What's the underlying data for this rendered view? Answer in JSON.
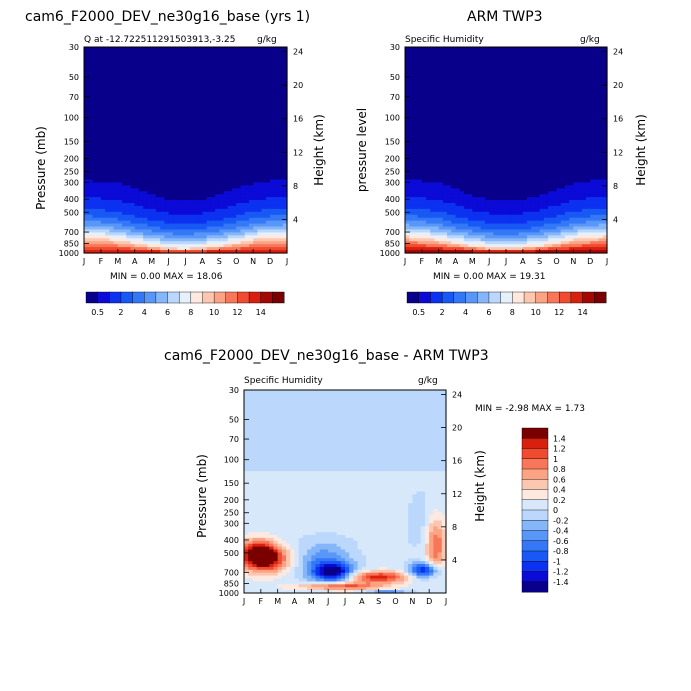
{
  "chart_data": [
    {
      "type": "heatmap",
      "title": "cam6_F2000_DEV_ne30g16_base (yrs 1)",
      "subtitle_left": "Q at -12.722511291503913,-3.25",
      "units": "g/kg",
      "ylabel": "Pressure (mb)",
      "ylabel_right": "Height (km)",
      "stats": "MIN =    0.00 MAX =   18.06",
      "surface": {
        "top_p": [
          290,
          295,
          305,
          330,
          370,
          400,
          410,
          400,
          370,
          335,
          305,
          292
        ],
        "mid_p": [
          760,
          780,
          810,
          855,
          895,
          925,
          930,
          920,
          890,
          850,
          800,
          770
        ],
        "base": 14.5
      }
    },
    {
      "type": "heatmap",
      "title": "ARM TWP3",
      "subtitle_left": "Specific Humidity",
      "units": "g/kg",
      "ylabel": "pressure level",
      "ylabel_right": "Height (km)",
      "stats": "MIN =    0.00 MAX =   19.31",
      "surface": {
        "top_p": [
          290,
          292,
          302,
          335,
          375,
          405,
          415,
          405,
          375,
          338,
          306,
          293
        ],
        "mid_p": [
          755,
          775,
          805,
          850,
          890,
          922,
          928,
          918,
          888,
          848,
          798,
          768
        ],
        "base": 15.5
      }
    },
    {
      "type": "heatmap",
      "title": "cam6_F2000_DEV_ne30g16_base - ARM TWP3",
      "subtitle_left": "Specific Humidity",
      "units": "g/kg",
      "ylabel": "Pressure (mb)",
      "ylabel_right": "Height (km)",
      "stats": "MIN =   -2.98 MAX =    1.73",
      "diff_blobs": [
        {
          "month": 1.2,
          "p": 560,
          "wm": 1.4,
          "wp": 0.22,
          "v": 1.6
        },
        {
          "month": 0.8,
          "p": 470,
          "wm": 1.1,
          "wp": 0.2,
          "v": 0.9
        },
        {
          "month": 4.8,
          "p": 590,
          "wm": 1.7,
          "wp": 0.35,
          "v": -0.7
        },
        {
          "month": 5.3,
          "p": 700,
          "wm": 1.1,
          "wp": 0.15,
          "v": -1.4
        },
        {
          "month": 8.0,
          "p": 760,
          "wm": 1.9,
          "wp": 0.1,
          "v": 1.2
        },
        {
          "month": 5.7,
          "p": 890,
          "wm": 2.4,
          "wp": 0.07,
          "v": 1.1
        },
        {
          "month": 10.7,
          "p": 680,
          "wm": 0.9,
          "wp": 0.13,
          "v": -1.3
        },
        {
          "month": 10.4,
          "p": 300,
          "wm": 0.7,
          "wp": 0.6,
          "v": -0.2
        },
        {
          "month": 8.5,
          "p": 990,
          "wm": 1.3,
          "wp": 0.03,
          "v": -0.8
        },
        {
          "month": 11.4,
          "p": 440,
          "wm": 0.6,
          "wp": 0.45,
          "v": 0.9
        }
      ]
    }
  ],
  "axes": {
    "months": [
      "J",
      "F",
      "M",
      "A",
      "M",
      "J",
      "J",
      "A",
      "S",
      "O",
      "N",
      "D",
      "J"
    ],
    "pressure_ticks": [
      "1000",
      "850",
      "700",
      "500",
      "400",
      "300",
      "250",
      "200",
      "150",
      "100",
      "70",
      "50",
      "30"
    ],
    "pressure_values": [
      1000,
      850,
      700,
      500,
      400,
      300,
      250,
      200,
      150,
      100,
      70,
      50,
      30
    ],
    "height_ticks": [
      "4",
      "8",
      "12",
      "16",
      "20",
      "24"
    ],
    "height_values": [
      4,
      8,
      12,
      16,
      20,
      24
    ]
  },
  "colorbar_abs": {
    "labels": [
      "0.5",
      "2",
      "4",
      "6",
      "8",
      "10",
      "12",
      "14"
    ],
    "levels": [
      0.5,
      1,
      2,
      3,
      4,
      5,
      6,
      7,
      8,
      9,
      10,
      11,
      12,
      13,
      14,
      15
    ],
    "colors": [
      "#08008a",
      "#0b0ad6",
      "#0d31f0",
      "#1858f4",
      "#3478f7",
      "#5897f8",
      "#86b6fa",
      "#bbd8fc",
      "#e5f0fd",
      "#fde9df",
      "#fcc7b0",
      "#fba383",
      "#f8775a",
      "#f04a30",
      "#d8200e",
      "#a30805",
      "#7a0000"
    ]
  },
  "colorbar_diff": {
    "labels": [
      "1.4",
      "1.2",
      "1",
      "0.8",
      "0.6",
      "0.4",
      "0.2",
      "0",
      "-0.2",
      "-0.4",
      "-0.6",
      "-0.8",
      "-1",
      "-1.2",
      "-1.4"
    ],
    "levels": [
      -1.4,
      -1.2,
      -1,
      -0.8,
      -0.6,
      -0.4,
      -0.2,
      0,
      0.2,
      0.4,
      0.6,
      0.8,
      1,
      1.2,
      1.4
    ],
    "colors": [
      "#08008a",
      "#0b0ad6",
      "#0d31f0",
      "#1858f4",
      "#3478f7",
      "#5897f8",
      "#86b6fa",
      "#bbd8fc",
      "#d8e8fb",
      "#fde9df",
      "#fcc7b0",
      "#fba383",
      "#f8775a",
      "#f04a30",
      "#d8200e",
      "#7a0000"
    ]
  }
}
